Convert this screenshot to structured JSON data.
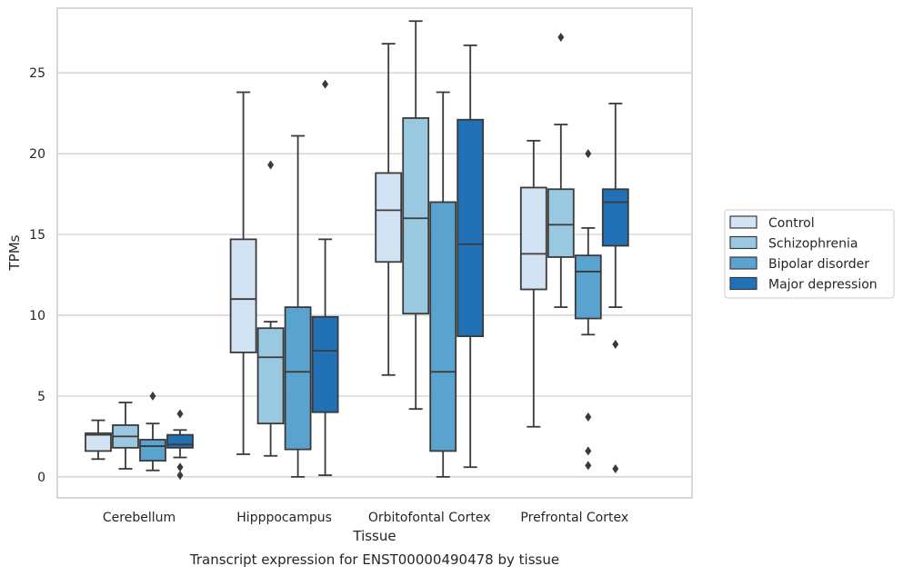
{
  "chart_data": {
    "type": "box",
    "title": "",
    "caption": "Transcript expression for ENST00000490478 by tissue",
    "xlabel": "Tissue",
    "ylabel": "TPMs",
    "ylim": [
      -1.3,
      29
    ],
    "yticks": [
      0,
      5,
      10,
      15,
      20,
      25
    ],
    "grid": "horizontal",
    "legend_position": "right",
    "categories": [
      "Cerebellum",
      "Hipppocampus",
      "Orbitofontal Cortex",
      "Prefrontal Cortex"
    ],
    "series": [
      {
        "name": "Control",
        "color": "#d2e3f3",
        "boxes": [
          {
            "whislo": 1.1,
            "q1": 1.6,
            "med": 2.6,
            "q3": 2.7,
            "whishi": 3.5,
            "fliers": []
          },
          {
            "whislo": 1.4,
            "q1": 7.7,
            "med": 11.0,
            "q3": 14.7,
            "whishi": 23.8,
            "fliers": []
          },
          {
            "whislo": 6.3,
            "q1": 13.3,
            "med": 16.5,
            "q3": 18.8,
            "whishi": 26.8,
            "fliers": []
          },
          {
            "whislo": 3.1,
            "q1": 11.6,
            "med": 13.8,
            "q3": 17.9,
            "whishi": 20.8,
            "fliers": []
          }
        ]
      },
      {
        "name": "Schizophrenia",
        "color": "#9ac8e0",
        "boxes": [
          {
            "whislo": 0.5,
            "q1": 1.8,
            "med": 2.5,
            "q3": 3.2,
            "whishi": 4.6,
            "fliers": []
          },
          {
            "whislo": 1.3,
            "q1": 3.3,
            "med": 7.4,
            "q3": 9.2,
            "whishi": 9.6,
            "fliers": [
              19.3
            ]
          },
          {
            "whislo": 4.2,
            "q1": 10.1,
            "med": 16.0,
            "q3": 22.2,
            "whishi": 28.2,
            "fliers": []
          },
          {
            "whislo": 10.5,
            "q1": 13.6,
            "med": 15.6,
            "q3": 17.8,
            "whishi": 21.8,
            "fliers": [
              27.2
            ]
          }
        ]
      },
      {
        "name": "Bipolar disorder",
        "color": "#5ba3cf",
        "boxes": [
          {
            "whislo": 0.4,
            "q1": 1.0,
            "med": 1.9,
            "q3": 2.3,
            "whishi": 3.3,
            "fliers": [
              5.0
            ]
          },
          {
            "whislo": 0.0,
            "q1": 1.7,
            "med": 6.5,
            "q3": 10.5,
            "whishi": 21.1,
            "fliers": []
          },
          {
            "whislo": 0.0,
            "q1": 1.6,
            "med": 6.5,
            "q3": 17.0,
            "whishi": 23.8,
            "fliers": []
          },
          {
            "whislo": 8.8,
            "q1": 9.8,
            "med": 12.7,
            "q3": 13.7,
            "whishi": 15.4,
            "fliers": [
              20.0,
              3.7,
              1.6,
              0.7
            ]
          }
        ]
      },
      {
        "name": "Major depression",
        "color": "#2270b5",
        "boxes": [
          {
            "whislo": 1.2,
            "q1": 1.8,
            "med": 2.0,
            "q3": 2.6,
            "whishi": 2.9,
            "fliers": [
              3.9,
              0.6,
              0.1
            ]
          },
          {
            "whislo": 0.1,
            "q1": 4.0,
            "med": 7.8,
            "q3": 9.9,
            "whishi": 14.7,
            "fliers": [
              24.3
            ]
          },
          {
            "whislo": 0.6,
            "q1": 8.7,
            "med": 14.4,
            "q3": 22.1,
            "whishi": 26.7,
            "fliers": []
          },
          {
            "whislo": 10.5,
            "q1": 14.3,
            "med": 17.0,
            "q3": 17.8,
            "whishi": 23.1,
            "fliers": [
              8.2,
              0.5
            ]
          }
        ]
      }
    ]
  }
}
